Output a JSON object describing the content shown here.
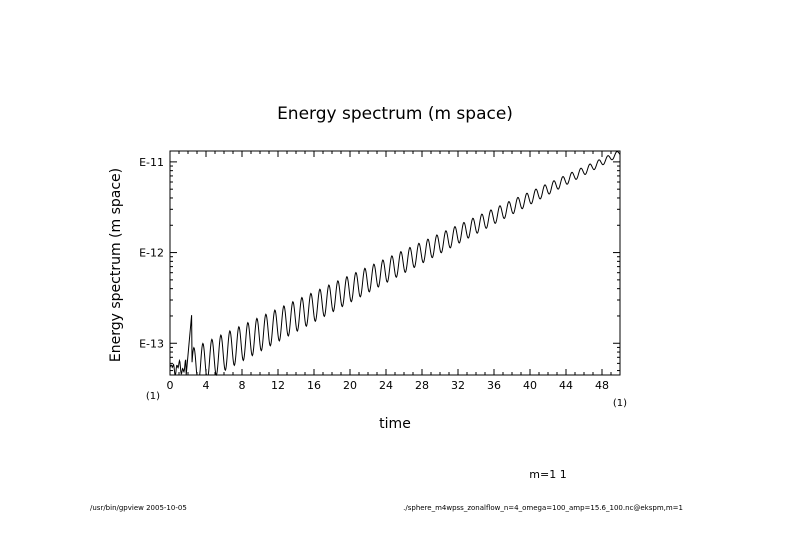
{
  "chart_data": {
    "type": "line",
    "title": "Energy spectrum (m space)",
    "xlabel": "time",
    "ylabel": "Energy spectrum (m space)",
    "x_corner_label": "(1)",
    "y_corner_label": "(1)",
    "xlim": [
      0,
      50
    ],
    "ylim_log10": [
      -13.35,
      -10.88
    ],
    "yscale": "log",
    "x_ticks": [
      0,
      4,
      8,
      12,
      16,
      20,
      24,
      28,
      32,
      36,
      40,
      44,
      48
    ],
    "x_tick_labels": [
      "0",
      "4",
      "8",
      "12",
      "16",
      "20",
      "24",
      "28",
      "32",
      "36",
      "40",
      "44",
      "48"
    ],
    "y_ticks_log10": [
      -13,
      -12,
      -11
    ],
    "y_tick_labels": [
      "E-13",
      "E-12",
      "E-11"
    ],
    "series": [
      {
        "name": "m=1 1",
        "description": "log-linear growth with oscillation of period ~1",
        "trend": {
          "t0": 2.0,
          "log10_at_t0": -13.3,
          "t1": 50.0,
          "log10_at_t1": -10.9
        },
        "oscillation": {
          "period": 1.0,
          "amplitude_log10_start": 0.22,
          "amplitude_log10_end": 0.03
        }
      }
    ],
    "legend": "m=1 1"
  },
  "footer": {
    "left": "/usr/bin/gpview  2005-10-05",
    "right": "./sphere_m4wpss_zonalflow_n=4_omega=100_amp=15.6_100.nc@ekspm,m=1"
  }
}
